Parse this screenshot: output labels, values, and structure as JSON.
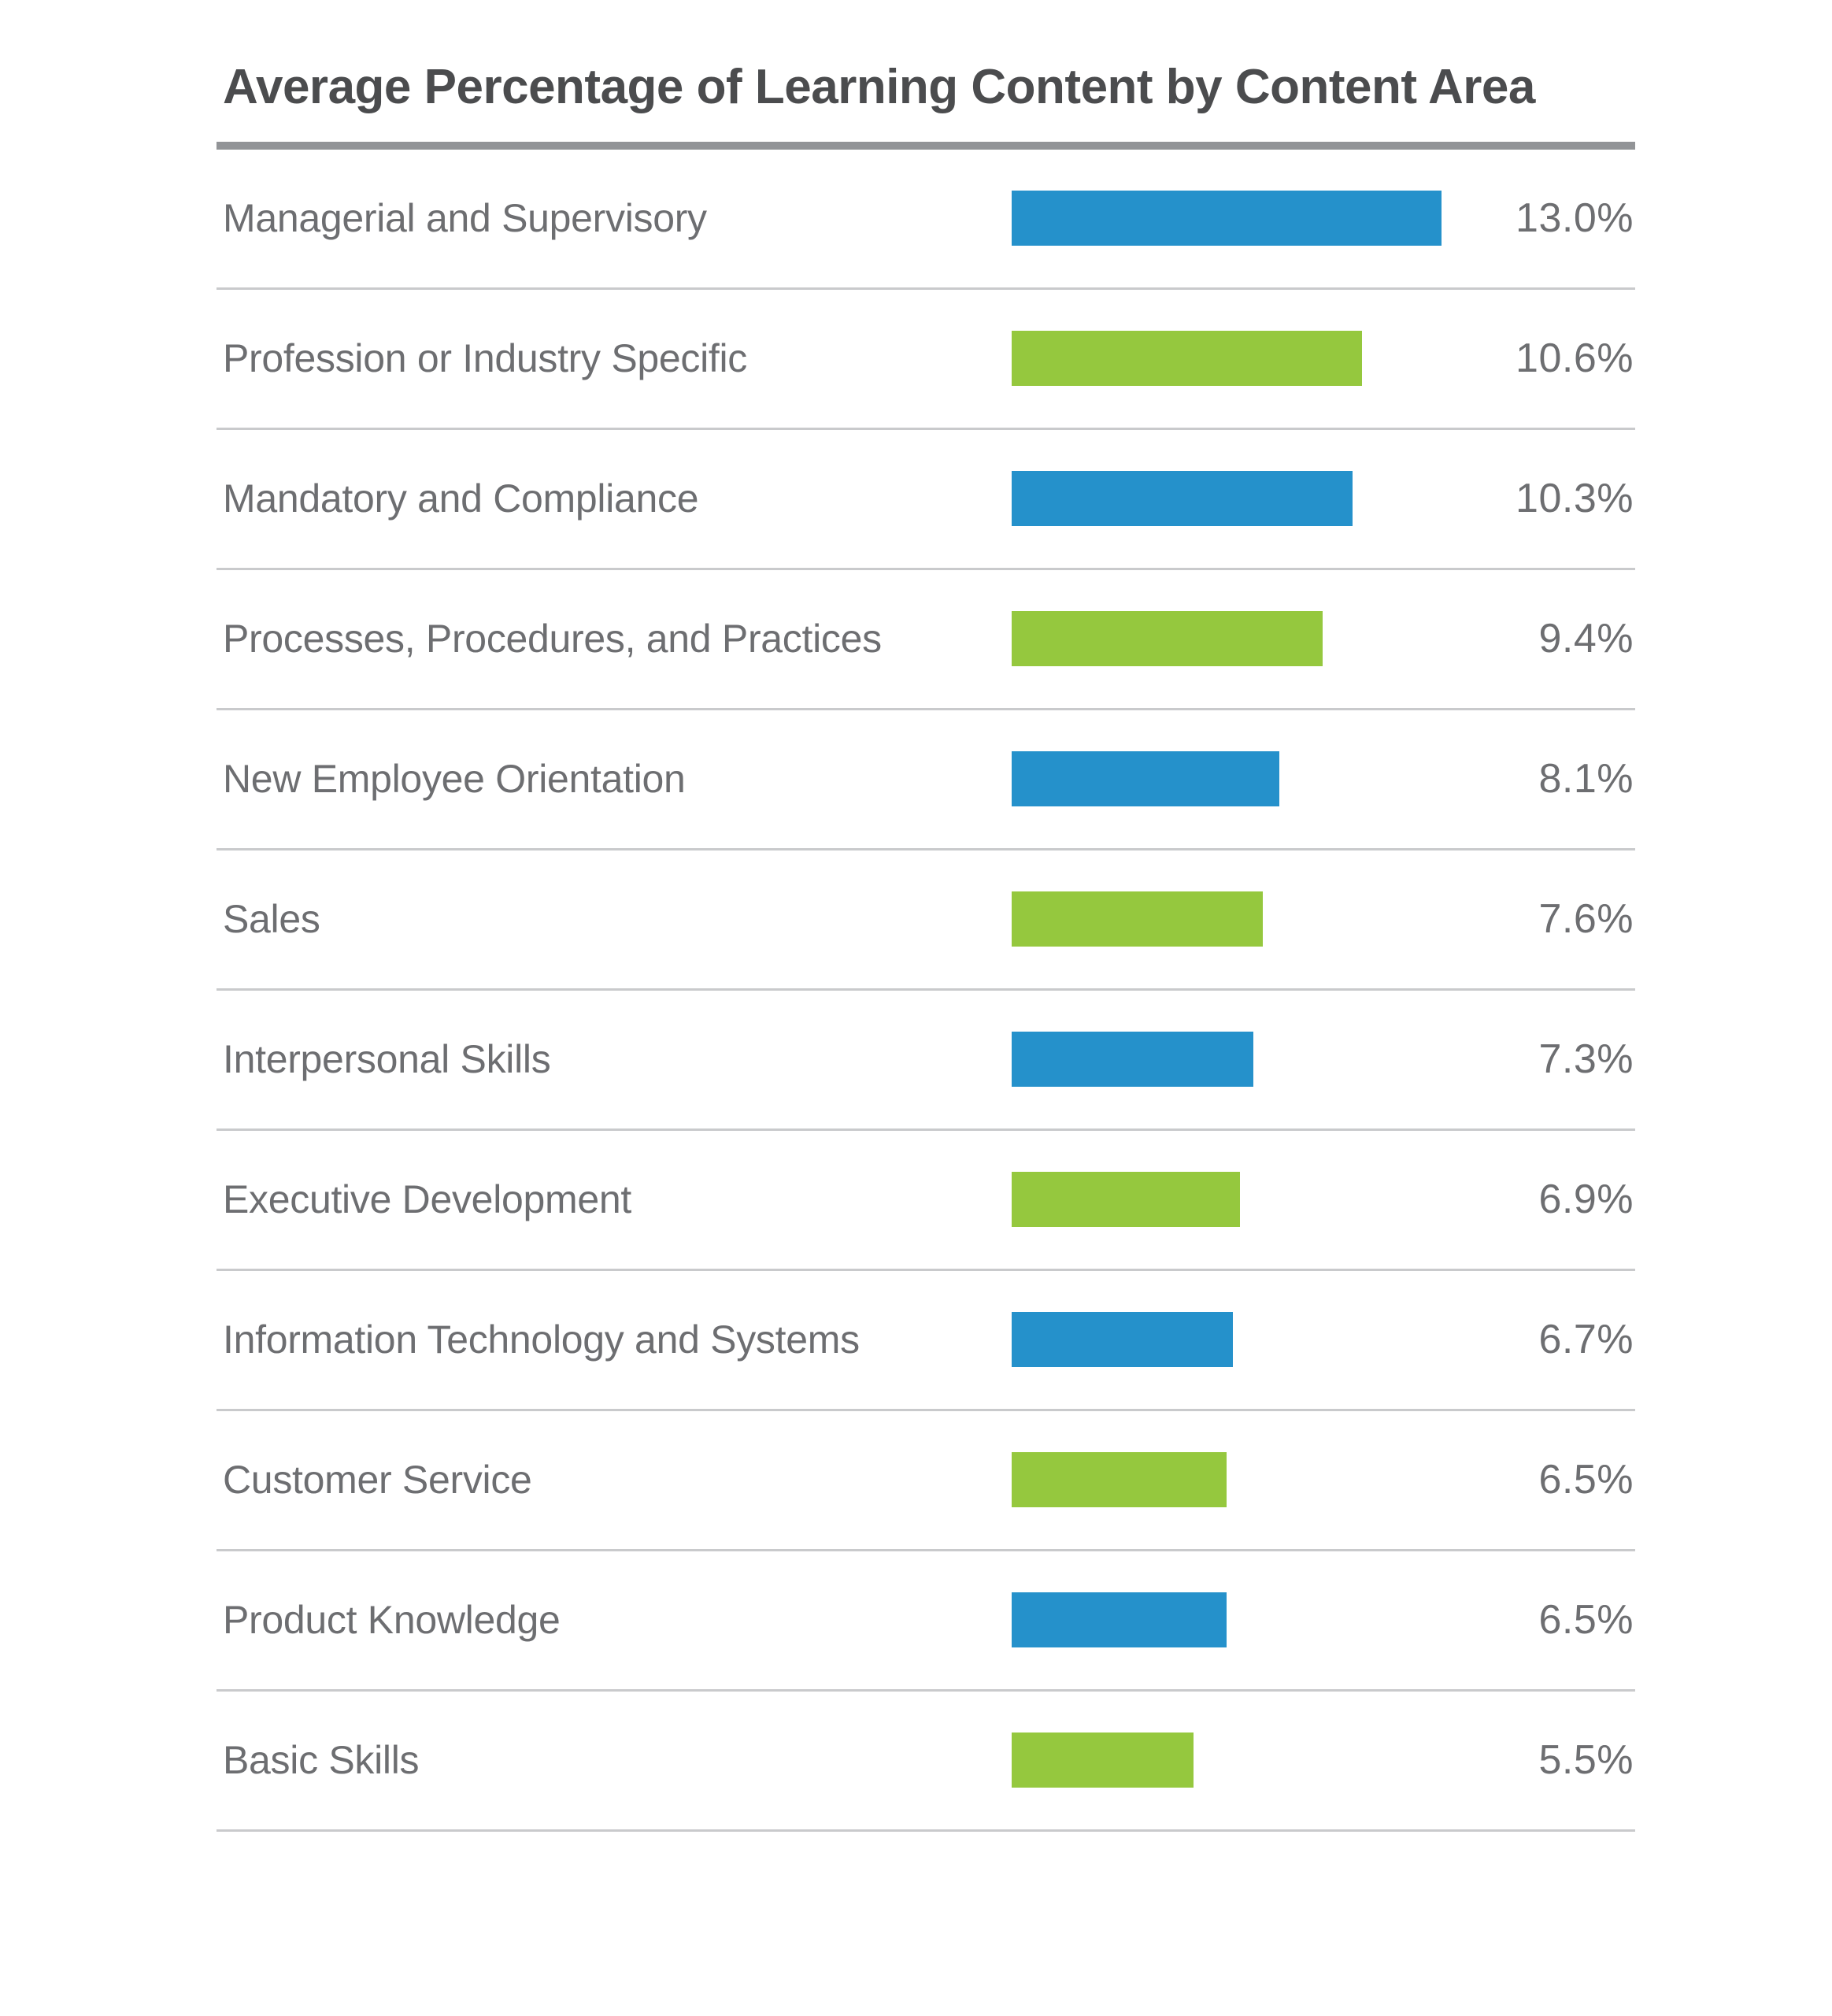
{
  "page": {
    "background": "#ffffff"
  },
  "styles": {
    "title_color": "#4b4c4e",
    "label_color": "#6d6e71",
    "value_color": "#6d6e71",
    "divider_color": "#c9cacc",
    "title_rule_color": "#929497",
    "bar_blue": "#2591cb",
    "bar_green": "#95c83e"
  },
  "chart_data": {
    "type": "bar",
    "orientation": "horizontal",
    "title": "Average Percentage of Learning Content by Content Area",
    "xlabel": "",
    "ylabel": "",
    "unit": "%",
    "xlim": [
      0,
      13.0
    ],
    "grid": false,
    "legend": false,
    "bar_color_pattern": "alternating blue/green",
    "categories": [
      "Managerial and Supervisory",
      "Profession or Industry Specific",
      "Mandatory and Compliance",
      "Processes, Procedures, and Practices",
      "New Employee Orientation",
      "Sales",
      "Interpersonal Skills",
      "Executive Development",
      "Information Technology and Systems",
      "Customer Service",
      "Product Knowledge",
      "Basic Skills"
    ],
    "values": [
      13.0,
      10.6,
      10.3,
      9.4,
      8.1,
      7.6,
      7.3,
      6.9,
      6.7,
      6.5,
      6.5,
      5.5
    ],
    "rows": [
      {
        "label": "Managerial and Supervisory",
        "value": 13.0,
        "display": "13.0%",
        "color": "#2591cb"
      },
      {
        "label": "Profession or Industry Specific",
        "value": 10.6,
        "display": "10.6%",
        "color": "#95c83e"
      },
      {
        "label": "Mandatory and Compliance",
        "value": 10.3,
        "display": "10.3%",
        "color": "#2591cb"
      },
      {
        "label": "Processes, Procedures, and Practices",
        "value": 9.4,
        "display": "9.4%",
        "color": "#95c83e"
      },
      {
        "label": "New Employee Orientation",
        "value": 8.1,
        "display": "8.1%",
        "color": "#2591cb"
      },
      {
        "label": "Sales",
        "value": 7.6,
        "display": "7.6%",
        "color": "#95c83e"
      },
      {
        "label": "Interpersonal Skills",
        "value": 7.3,
        "display": "7.3%",
        "color": "#2591cb"
      },
      {
        "label": "Executive Development",
        "value": 6.9,
        "display": "6.9%",
        "color": "#95c83e"
      },
      {
        "label": "Information Technology and Systems",
        "value": 6.7,
        "display": "6.7%",
        "color": "#2591cb"
      },
      {
        "label": "Customer Service",
        "value": 6.5,
        "display": "6.5%",
        "color": "#95c83e"
      },
      {
        "label": "Product Knowledge",
        "value": 6.5,
        "display": "6.5%",
        "color": "#2591cb"
      },
      {
        "label": "Basic Skills",
        "value": 5.5,
        "display": "5.5%",
        "color": "#95c83e"
      }
    ]
  }
}
